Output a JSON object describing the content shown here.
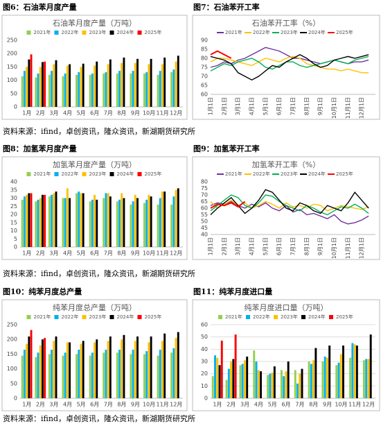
{
  "chart_data": [
    {
      "type": "bar",
      "caption": "图6：石油苯月度产量",
      "title": "石油苯月度产量（万吨）",
      "categories": [
        "1月",
        "2月",
        "3月",
        "4月",
        "5月",
        "6月",
        "7月",
        "8月",
        "9月",
        "10月",
        "11月",
        "12月"
      ],
      "series": [
        {
          "name": "2021年",
          "color": "#92d050",
          "values": [
            115,
            110,
            120,
            115,
            120,
            120,
            125,
            125,
            125,
            125,
            120,
            130
          ]
        },
        {
          "name": "2022年",
          "color": "#00b0f0",
          "values": [
            135,
            125,
            135,
            125,
            130,
            125,
            130,
            135,
            135,
            130,
            135,
            140
          ]
        },
        {
          "name": "2023年",
          "color": "#ffc000",
          "values": [
            150,
            150,
            160,
            155,
            150,
            155,
            160,
            165,
            165,
            160,
            160,
            170
          ]
        },
        {
          "name": "2024年",
          "color": "#000000",
          "values": [
            178,
            168,
            175,
            160,
            162,
            170,
            178,
            185,
            180,
            180,
            185,
            192
          ]
        },
        {
          "name": "2025年",
          "color": "#ff0000",
          "values": [
            197,
            170,
            null,
            null,
            null,
            null,
            null,
            null,
            null,
            null,
            null,
            null
          ]
        }
      ],
      "ylim": [
        0,
        250
      ],
      "yticks": [
        0,
        50,
        100,
        150,
        200,
        250
      ],
      "grid": false
    },
    {
      "type": "line",
      "caption": "图7：石油苯开工率",
      "title": "石油苯开工率（%）",
      "categories": [
        "1月1日",
        null,
        "2月1日",
        null,
        "3月1日",
        null,
        "4月1日",
        null,
        "5月1日",
        null,
        "6月1日",
        null,
        "7月1日",
        null,
        "8月1日",
        null,
        "9月1日",
        null,
        "10月1日",
        null,
        "11月1日",
        null,
        "12月1日",
        null
      ],
      "series": [
        {
          "name": "2021年",
          "color": "#7030a0",
          "values": [
            75,
            76,
            78,
            77,
            79,
            80,
            82,
            84,
            86,
            85,
            84,
            82,
            80,
            80,
            79,
            78,
            77,
            78,
            79,
            78,
            77,
            78,
            78,
            79
          ]
        },
        {
          "name": "2022年",
          "color": "#ffc000",
          "values": [
            78,
            80,
            80,
            79,
            78,
            77,
            76,
            78,
            80,
            79,
            78,
            80,
            81,
            80,
            77,
            76,
            75,
            74,
            74,
            73,
            74,
            73,
            72,
            72
          ]
        },
        {
          "name": "2023年",
          "color": "#00b050",
          "values": [
            73,
            75,
            77,
            76,
            78,
            79,
            80,
            78,
            75,
            74,
            76,
            78,
            78,
            76,
            75,
            76,
            77,
            78,
            79,
            78,
            77,
            79,
            80,
            81
          ]
        },
        {
          "name": "2024年",
          "color": "#000000",
          "values": [
            81,
            80,
            79,
            77,
            72,
            70,
            68,
            70,
            73,
            76,
            75,
            78,
            80,
            82,
            80,
            77,
            75,
            76,
            79,
            80,
            81,
            80,
            81,
            82
          ]
        },
        {
          "name": "2025年",
          "color": "#ff0000",
          "values": [
            82,
            84,
            82,
            80,
            null,
            null,
            null,
            null,
            null,
            null,
            null,
            null,
            null,
            null,
            null,
            null,
            null,
            null,
            null,
            null,
            null,
            null,
            null,
            null
          ]
        }
      ],
      "ylim": [
        60,
        90
      ],
      "yticks": [
        60,
        65,
        70,
        75,
        80,
        85,
        90
      ],
      "grid": false
    },
    {
      "type": "bar",
      "caption": "图8：加氢苯月度产量",
      "title": "加氢苯月度产量（万吨）",
      "categories": [
        "1月",
        "2月",
        "3月",
        "4月",
        "5月",
        "6月",
        "7月",
        "8月",
        "9月",
        "10月",
        "11月",
        "12月"
      ],
      "series": [
        {
          "name": "2021年",
          "color": "#92d050",
          "values": [
            29,
            28,
            31,
            30,
            33,
            28,
            30,
            28,
            26,
            27,
            26,
            26
          ]
        },
        {
          "name": "2022年",
          "color": "#00b0f0",
          "values": [
            31,
            29,
            32,
            30,
            34,
            29,
            33,
            29,
            28,
            29,
            30,
            31
          ]
        },
        {
          "name": "2023年",
          "color": "#ffc000",
          "values": [
            32,
            30,
            33,
            36,
            33,
            32,
            33,
            33,
            32,
            32,
            34,
            35
          ]
        },
        {
          "name": "2024年",
          "color": "#000000",
          "values": [
            33,
            32,
            34,
            30,
            33,
            29,
            31,
            30,
            30,
            31,
            34,
            36
          ]
        },
        {
          "name": "2025年",
          "color": "#ff0000",
          "values": [
            33,
            32,
            null,
            null,
            null,
            null,
            null,
            null,
            null,
            null,
            null,
            null
          ]
        }
      ],
      "ylim": [
        0,
        40
      ],
      "yticks": [
        0,
        5,
        10,
        15,
        20,
        25,
        30,
        35,
        40
      ],
      "grid": false
    },
    {
      "type": "line",
      "caption": "图9：加氢苯开工率",
      "title": "加氢苯开工率（%）",
      "categories": [
        "1月1日",
        null,
        "2月1日",
        null,
        "3月1日",
        null,
        "4月1日",
        null,
        "5月1日",
        null,
        "6月1日",
        null,
        "7月1日",
        null,
        "8月1日",
        null,
        "9月1日",
        null,
        "10月1日",
        null,
        "11月1日",
        null,
        "12月1日",
        null
      ],
      "series": [
        {
          "name": "2021年",
          "color": "#7030a0",
          "values": [
            62,
            64,
            63,
            65,
            62,
            60,
            63,
            61,
            64,
            60,
            58,
            62,
            57,
            59,
            55,
            56,
            54,
            52,
            55,
            50,
            48,
            49,
            51,
            54
          ]
        },
        {
          "name": "2022年",
          "color": "#ffc000",
          "values": [
            65,
            60,
            63,
            66,
            62,
            64,
            60,
            62,
            65,
            63,
            60,
            64,
            61,
            62,
            60,
            63,
            62,
            58,
            60,
            62,
            61,
            60,
            59,
            61
          ]
        },
        {
          "name": "2023年",
          "color": "#00b050",
          "values": [
            58,
            62,
            66,
            70,
            68,
            62,
            60,
            64,
            70,
            69,
            65,
            62,
            60,
            58,
            62,
            60,
            57,
            55,
            58,
            61,
            60,
            63,
            60,
            56
          ]
        },
        {
          "name": "2024年",
          "color": "#000000",
          "values": [
            55,
            60,
            64,
            68,
            62,
            56,
            60,
            66,
            74,
            72,
            66,
            60,
            58,
            64,
            62,
            58,
            56,
            62,
            60,
            58,
            64,
            72,
            66,
            60
          ]
        },
        {
          "name": "2025年",
          "color": "#ff0000",
          "values": [
            60,
            63,
            62,
            64,
            61,
            65,
            null,
            null,
            null,
            null,
            null,
            null,
            null,
            null,
            null,
            null,
            null,
            null,
            null,
            null,
            null,
            null,
            null,
            null
          ]
        }
      ],
      "ylim": [
        40,
        80
      ],
      "yticks": [
        40,
        45,
        50,
        55,
        60,
        65,
        70,
        75,
        80
      ],
      "grid": false
    },
    {
      "type": "bar",
      "caption": "图10：纯苯月度总产量",
      "title": "纯苯月度总产量（万吨）",
      "categories": [
        "1月",
        "2月",
        "3月",
        "4月",
        "5月",
        "6月",
        "7月",
        "8月",
        "9月",
        "10月",
        "11月",
        "12月"
      ],
      "series": [
        {
          "name": "2021年",
          "color": "#92d050",
          "values": [
            145,
            140,
            150,
            145,
            150,
            145,
            155,
            155,
            150,
            150,
            145,
            155
          ]
        },
        {
          "name": "2022年",
          "color": "#00b0f0",
          "values": [
            165,
            155,
            165,
            155,
            165,
            155,
            165,
            165,
            165,
            160,
            165,
            170
          ]
        },
        {
          "name": "2023年",
          "color": "#ffc000",
          "values": [
            185,
            180,
            195,
            190,
            185,
            190,
            195,
            200,
            195,
            190,
            195,
            205
          ]
        },
        {
          "name": "2024年",
          "color": "#000000",
          "values": [
            210,
            200,
            210,
            190,
            195,
            200,
            210,
            215,
            210,
            210,
            220,
            225
          ]
        },
        {
          "name": "2025年",
          "color": "#ff0000",
          "values": [
            232,
            205,
            null,
            null,
            null,
            null,
            null,
            null,
            null,
            null,
            null,
            null
          ]
        }
      ],
      "ylim": [
        0,
        250
      ],
      "yticks": [
        0,
        50,
        100,
        150,
        200,
        250
      ],
      "grid": false
    },
    {
      "type": "bar",
      "caption": "图11：纯苯月度进口量",
      "title": "纯苯月度进口量（万吨）",
      "categories": [
        "1月",
        "2月",
        "3月",
        "4月",
        "5月",
        "6月",
        "7月",
        "8月",
        "9月",
        "10月",
        "11月",
        "12月"
      ],
      "series": [
        {
          "name": "2021年",
          "color": "#92d050",
          "values": [
            18,
            15,
            27,
            39,
            19,
            23,
            23,
            30,
            30,
            27,
            33,
            31
          ]
        },
        {
          "name": "2022年",
          "color": "#00b0f0",
          "values": [
            35,
            24,
            28,
            30,
            20,
            18,
            12,
            28,
            34,
            29,
            45,
            32
          ]
        },
        {
          "name": "2023年",
          "color": "#ffc000",
          "values": [
            33,
            30,
            31,
            23,
            21,
            22,
            20,
            31,
            33,
            36,
            44,
            32
          ]
        },
        {
          "name": "2024年",
          "color": "#000000",
          "values": [
            27,
            32,
            34,
            22,
            26,
            30,
            24,
            41,
            43,
            43,
            43,
            52
          ]
        },
        {
          "name": "2025年",
          "color": "#ff0000",
          "values": [
            47,
            52,
            null,
            null,
            null,
            null,
            null,
            null,
            null,
            null,
            null,
            null
          ]
        }
      ],
      "ylim": [
        0,
        60
      ],
      "yticks": [
        0,
        10,
        20,
        30,
        40,
        50,
        60
      ],
      "grid": true
    }
  ],
  "sources": [
    "资料来源：ifind，卓创资讯，隆众资讯，新湖期货研究所",
    "资料来源：ifind，卓创资讯，隆众资讯，新湖期货研究所",
    "资料来源：ifind，卓创资讯，隆众资讯，新湖期货研究所"
  ]
}
